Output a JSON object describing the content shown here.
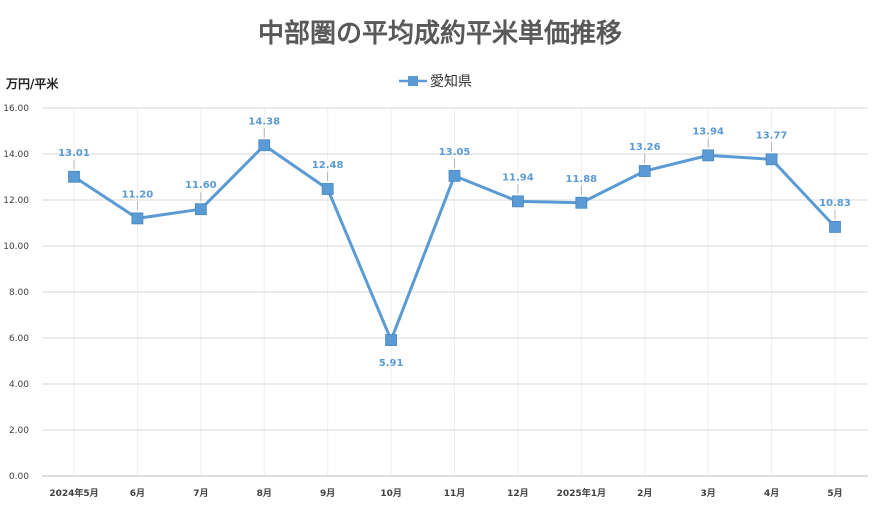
{
  "chart_data": {
    "type": "line",
    "title": "中部圏の平均成約平米単価推移",
    "ylabel": "万円/平米",
    "xlabel": "",
    "categories": [
      "2024年5月",
      "6月",
      "7月",
      "8月",
      "9月",
      "10月",
      "11月",
      "12月",
      "2025年1月",
      "2月",
      "3月",
      "4月",
      "5月"
    ],
    "series": [
      {
        "name": "愛知県",
        "values": [
          13.01,
          11.2,
          11.6,
          14.38,
          12.48,
          5.91,
          13.05,
          11.94,
          11.88,
          13.26,
          13.94,
          13.77,
          10.83
        ],
        "value_labels": [
          "13.01",
          "11.20",
          "11.60",
          "14.38",
          "12.48",
          "5.91",
          "13.05",
          "11.94",
          "11.88",
          "13.26",
          "13.94",
          "13.77",
          "10.83"
        ],
        "color": "#5b9bd5",
        "marker": "square"
      }
    ],
    "ylim": [
      0,
      16
    ],
    "yticks": [
      "0.00",
      "2.00",
      "4.00",
      "6.00",
      "8.00",
      "10.00",
      "12.00",
      "14.00",
      "16.00"
    ],
    "ytick_values": [
      0,
      2,
      4,
      6,
      8,
      10,
      12,
      14,
      16
    ],
    "grid": true,
    "legend_position": "top-center"
  }
}
